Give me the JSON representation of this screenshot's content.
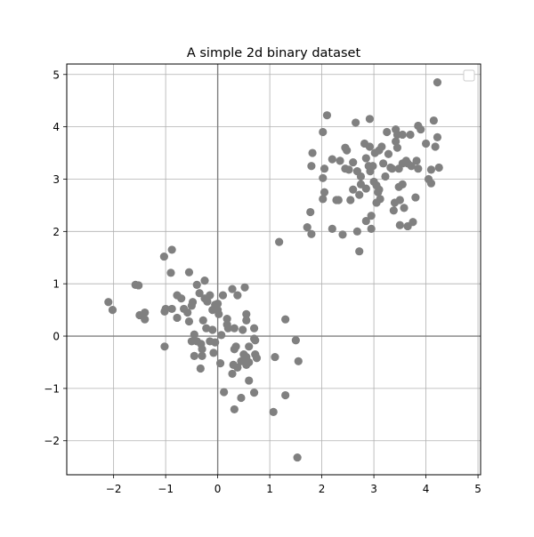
{
  "chart_data": {
    "type": "scatter",
    "title": "A simple 2d binary dataset",
    "xlabel": "",
    "ylabel": "",
    "xlim": [
      -2.9,
      5.05
    ],
    "ylim": [
      -2.65,
      5.2
    ],
    "x_ticks": [
      -2,
      -1,
      0,
      1,
      2,
      3,
      4,
      5
    ],
    "y_ticks": [
      -2,
      -1,
      0,
      1,
      2,
      3,
      4,
      5
    ],
    "x_tick_labels": [
      "−2",
      "−1",
      "0",
      "1",
      "2",
      "3",
      "4",
      "5"
    ],
    "y_tick_labels": [
      "−2",
      "−1",
      "0",
      "1",
      "2",
      "3",
      "4",
      "5"
    ],
    "grid": true,
    "zero_lines": true,
    "legend": "top-right (empty)",
    "marker_color": "#808080",
    "series": [
      {
        "points": [
          [
            -2.1,
            0.65
          ],
          [
            -2.02,
            0.5
          ],
          [
            -1.58,
            0.98
          ],
          [
            -1.52,
            0.97
          ],
          [
            -1.5,
            0.4
          ],
          [
            -1.4,
            0.45
          ],
          [
            -1.4,
            0.32
          ],
          [
            -1.03,
            1.52
          ],
          [
            -1.02,
            0.47
          ],
          [
            -1.0,
            0.52
          ],
          [
            -1.02,
            -0.2
          ],
          [
            -0.88,
            1.65
          ],
          [
            -0.9,
            1.21
          ],
          [
            -0.88,
            0.52
          ],
          [
            -0.78,
            0.78
          ],
          [
            -0.78,
            0.35
          ],
          [
            -0.7,
            0.72
          ],
          [
            -0.65,
            0.52
          ],
          [
            -0.55,
            1.22
          ],
          [
            -0.58,
            0.45
          ],
          [
            -0.55,
            0.28
          ],
          [
            -0.48,
            0.65
          ],
          [
            -0.5,
            0.58
          ],
          [
            -0.4,
            0.98
          ],
          [
            -0.35,
            0.82
          ],
          [
            -0.25,
            1.06
          ],
          [
            -0.25,
            0.72
          ],
          [
            -0.2,
            0.66
          ],
          [
            -0.15,
            0.78
          ],
          [
            -0.1,
            0.5
          ],
          [
            -0.05,
            0.6
          ],
          [
            0.0,
            0.62
          ],
          [
            0.0,
            0.5
          ],
          [
            0.02,
            0.42
          ],
          [
            -0.5,
            -0.1
          ],
          [
            -0.45,
            0.03
          ],
          [
            -0.4,
            -0.1
          ],
          [
            -0.32,
            -0.15
          ],
          [
            -0.3,
            -0.25
          ],
          [
            -0.28,
            0.3
          ],
          [
            -0.22,
            0.15
          ],
          [
            -0.15,
            -0.1
          ],
          [
            -0.1,
            0.12
          ],
          [
            -0.05,
            -0.12
          ],
          [
            -0.3,
            -0.38
          ],
          [
            -0.45,
            -0.38
          ],
          [
            -0.33,
            -0.62
          ],
          [
            -0.08,
            -0.32
          ],
          [
            0.05,
            -0.52
          ],
          [
            0.07,
            0.02
          ],
          [
            0.1,
            0.78
          ],
          [
            0.18,
            0.33
          ],
          [
            0.18,
            0.22
          ],
          [
            0.2,
            0.15
          ],
          [
            0.28,
            0.9
          ],
          [
            0.32,
            0.15
          ],
          [
            0.38,
            0.78
          ],
          [
            0.52,
            0.93
          ],
          [
            0.55,
            0.42
          ],
          [
            0.55,
            0.3
          ],
          [
            0.48,
            0.12
          ],
          [
            0.7,
            0.15
          ],
          [
            0.7,
            -0.05
          ],
          [
            0.6,
            -0.2
          ],
          [
            0.72,
            -0.08
          ],
          [
            0.35,
            -0.2
          ],
          [
            0.32,
            -0.25
          ],
          [
            0.5,
            -0.35
          ],
          [
            0.55,
            -0.4
          ],
          [
            0.45,
            -0.48
          ],
          [
            0.6,
            -0.5
          ],
          [
            0.72,
            -0.35
          ],
          [
            0.75,
            -0.42
          ],
          [
            0.3,
            -0.55
          ],
          [
            0.38,
            -0.6
          ],
          [
            0.28,
            -0.72
          ],
          [
            0.55,
            -0.55
          ],
          [
            0.6,
            -0.85
          ],
          [
            0.12,
            -1.07
          ],
          [
            0.32,
            -1.4
          ],
          [
            0.45,
            -1.18
          ],
          [
            0.7,
            -1.08
          ],
          [
            1.07,
            -1.45
          ],
          [
            1.1,
            -0.4
          ],
          [
            1.3,
            -1.13
          ],
          [
            1.3,
            0.32
          ],
          [
            1.5,
            -0.08
          ],
          [
            1.55,
            -0.48
          ],
          [
            1.53,
            -2.32
          ],
          [
            1.18,
            1.8
          ],
          [
            1.72,
            2.08
          ],
          [
            1.78,
            2.37
          ],
          [
            1.8,
            1.95
          ],
          [
            1.8,
            3.25
          ],
          [
            1.82,
            3.5
          ],
          [
            2.02,
            3.9
          ],
          [
            2.05,
            3.2
          ],
          [
            2.02,
            3.02
          ],
          [
            2.05,
            2.75
          ],
          [
            2.02,
            2.62
          ],
          [
            2.1,
            4.22
          ],
          [
            2.2,
            2.05
          ],
          [
            2.2,
            3.38
          ],
          [
            2.28,
            2.6
          ],
          [
            2.32,
            2.6
          ],
          [
            2.35,
            3.35
          ],
          [
            2.4,
            1.94
          ],
          [
            2.45,
            3.6
          ],
          [
            2.48,
            3.55
          ],
          [
            2.45,
            3.2
          ],
          [
            2.52,
            3.18
          ],
          [
            2.55,
            2.6
          ],
          [
            2.6,
            3.32
          ],
          [
            2.6,
            2.8
          ],
          [
            2.65,
            4.08
          ],
          [
            2.68,
            3.15
          ],
          [
            2.68,
            2.0
          ],
          [
            2.72,
            1.62
          ],
          [
            2.75,
            3.05
          ],
          [
            2.75,
            2.9
          ],
          [
            2.72,
            2.7
          ],
          [
            2.82,
            3.68
          ],
          [
            2.85,
            3.4
          ],
          [
            2.85,
            2.82
          ],
          [
            2.85,
            2.2
          ],
          [
            2.9,
            3.25
          ],
          [
            2.92,
            3.62
          ],
          [
            2.93,
            3.15
          ],
          [
            2.92,
            4.15
          ],
          [
            2.95,
            2.3
          ],
          [
            2.95,
            2.05
          ],
          [
            2.98,
            3.25
          ],
          [
            3.0,
            2.95
          ],
          [
            3.02,
            3.5
          ],
          [
            3.05,
            2.88
          ],
          [
            3.05,
            2.55
          ],
          [
            3.08,
            2.75
          ],
          [
            3.1,
            3.55
          ],
          [
            3.1,
            2.8
          ],
          [
            3.12,
            2.62
          ],
          [
            3.15,
            3.62
          ],
          [
            3.18,
            3.3
          ],
          [
            3.22,
            3.05
          ],
          [
            3.25,
            3.9
          ],
          [
            3.28,
            3.48
          ],
          [
            3.32,
            3.22
          ],
          [
            3.35,
            3.2
          ],
          [
            3.38,
            2.4
          ],
          [
            3.4,
            2.55
          ],
          [
            3.42,
            3.95
          ],
          [
            3.42,
            3.72
          ],
          [
            3.45,
            3.85
          ],
          [
            3.45,
            3.6
          ],
          [
            3.48,
            3.2
          ],
          [
            3.48,
            2.85
          ],
          [
            3.5,
            2.6
          ],
          [
            3.5,
            2.12
          ],
          [
            3.55,
            3.85
          ],
          [
            3.55,
            3.3
          ],
          [
            3.55,
            2.9
          ],
          [
            3.58,
            2.45
          ],
          [
            3.62,
            3.35
          ],
          [
            3.65,
            3.3
          ],
          [
            3.65,
            2.1
          ],
          [
            3.7,
            3.85
          ],
          [
            3.72,
            3.25
          ],
          [
            3.75,
            2.18
          ],
          [
            3.8,
            2.65
          ],
          [
            3.82,
            3.35
          ],
          [
            3.85,
            3.2
          ],
          [
            3.85,
            4.02
          ],
          [
            3.9,
            3.95
          ],
          [
            4.0,
            3.68
          ],
          [
            4.05,
            3.0
          ],
          [
            4.1,
            3.18
          ],
          [
            4.1,
            2.92
          ],
          [
            4.15,
            4.12
          ],
          [
            4.18,
            3.62
          ],
          [
            4.22,
            3.8
          ],
          [
            4.25,
            3.22
          ],
          [
            4.22,
            4.85
          ]
        ]
      }
    ]
  }
}
